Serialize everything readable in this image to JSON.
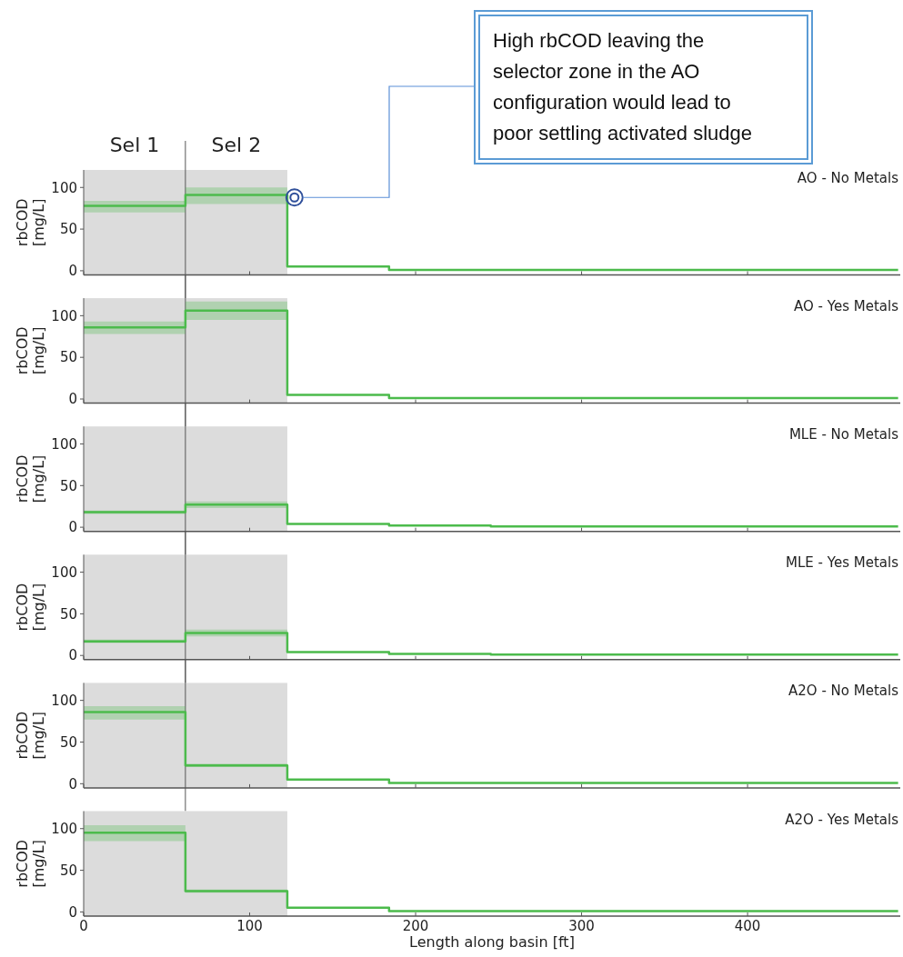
{
  "chart_data": [
    {
      "type": "step",
      "title": "AO - No Metals",
      "ylabel": "rbCOD [mg/L]",
      "xlim": [
        0,
        492
      ],
      "xticks": [
        0,
        100,
        200,
        300,
        400
      ],
      "ylim": [
        -5,
        121
      ],
      "yticks": [
        0,
        50,
        100
      ],
      "tick_labels": "y",
      "grid": false,
      "x": [
        0,
        61.3,
        122.7,
        184,
        245.3,
        306.7,
        368,
        429.3,
        490.7
      ],
      "series": [
        {
          "color": "#4cbb4c",
          "values": [
            78,
            91,
            5,
            1,
            1,
            1,
            1,
            1,
            1
          ],
          "lower": [
            70,
            80,
            5,
            null,
            null,
            null,
            null,
            null,
            null
          ],
          "upper": [
            84,
            100,
            5,
            null,
            null,
            null,
            null,
            null,
            null
          ]
        }
      ],
      "bands": [
        {
          "axis": "x",
          "from": 0,
          "to": 61.3,
          "label": "Sel 1",
          "color": "#dcdcdc"
        },
        {
          "axis": "x",
          "from": 61.3,
          "to": 122.7,
          "label": "Sel 2",
          "color": "#dcdcdc"
        }
      ],
      "ref_lines": [
        {
          "axis": "x",
          "value": 61.3,
          "color": "#555555"
        }
      ],
      "annotations": [
        {
          "text": "High rbCOD leaving the selector zone in the AO configuration would lead to poor settling activated sludge",
          "x": 127,
          "y": 88
        }
      ]
    },
    {
      "type": "step",
      "title": "AO - Yes Metals",
      "ylabel": "rbCOD [mg/L]",
      "xlim": [
        0,
        492
      ],
      "xticks": [
        0,
        100,
        200,
        300,
        400
      ],
      "ylim": [
        -5,
        121
      ],
      "yticks": [
        0,
        50,
        100
      ],
      "tick_labels": "y",
      "grid": false,
      "x": [
        0,
        61.3,
        122.7,
        184,
        245.3,
        306.7,
        368,
        429.3,
        490.7
      ],
      "series": [
        {
          "color": "#4cbb4c",
          "values": [
            86,
            106,
            5,
            1,
            1,
            1,
            1,
            1,
            1
          ],
          "lower": [
            78,
            95,
            5,
            null,
            null,
            null,
            null,
            null,
            null
          ],
          "upper": [
            93,
            117,
            5,
            null,
            null,
            null,
            null,
            null,
            null
          ]
        }
      ],
      "bands": [
        {
          "axis": "x",
          "from": 0,
          "to": 122.7,
          "color": "#dcdcdc"
        }
      ],
      "ref_lines": [
        {
          "axis": "x",
          "value": 61.3,
          "color": "#555555"
        }
      ]
    },
    {
      "type": "step",
      "title": "MLE - No Metals",
      "ylabel": "rbCOD [mg/L]",
      "xlim": [
        0,
        492
      ],
      "xticks": [
        0,
        100,
        200,
        300,
        400
      ],
      "ylim": [
        -5,
        121
      ],
      "yticks": [
        0,
        50,
        100
      ],
      "tick_labels": "y",
      "grid": false,
      "x": [
        0,
        61.3,
        122.7,
        184,
        245.3,
        306.7,
        368,
        429.3,
        490.7
      ],
      "series": [
        {
          "color": "#4cbb4c",
          "values": [
            18,
            27,
            4,
            2,
            1,
            1,
            1,
            1,
            1
          ],
          "lower": [
            16,
            23,
            4,
            null,
            null,
            null,
            null,
            null,
            null
          ],
          "upper": [
            20,
            31,
            4,
            null,
            null,
            null,
            null,
            null,
            null
          ]
        }
      ],
      "bands": [
        {
          "axis": "x",
          "from": 0,
          "to": 122.7,
          "color": "#dcdcdc"
        }
      ],
      "ref_lines": [
        {
          "axis": "x",
          "value": 61.3,
          "color": "#555555"
        }
      ]
    },
    {
      "type": "step",
      "title": "MLE - Yes Metals",
      "ylabel": "rbCOD [mg/L]",
      "xlim": [
        0,
        492
      ],
      "xticks": [
        0,
        100,
        200,
        300,
        400
      ],
      "ylim": [
        -5,
        121
      ],
      "yticks": [
        0,
        50,
        100
      ],
      "tick_labels": "y",
      "grid": false,
      "x": [
        0,
        61.3,
        122.7,
        184,
        245.3,
        306.7,
        368,
        429.3,
        490.7
      ],
      "series": [
        {
          "color": "#4cbb4c",
          "values": [
            17,
            27,
            4,
            2,
            1,
            1,
            1,
            1,
            1
          ],
          "lower": [
            15,
            23,
            4,
            null,
            null,
            null,
            null,
            null,
            null
          ],
          "upper": [
            19,
            31,
            4,
            null,
            null,
            null,
            null,
            null,
            null
          ]
        }
      ],
      "bands": [
        {
          "axis": "x",
          "from": 0,
          "to": 122.7,
          "color": "#dcdcdc"
        }
      ],
      "ref_lines": [
        {
          "axis": "x",
          "value": 61.3,
          "color": "#555555"
        }
      ]
    },
    {
      "type": "step",
      "title": "A2O - No Metals",
      "ylabel": "rbCOD [mg/L]",
      "xlim": [
        0,
        492
      ],
      "xticks": [
        0,
        100,
        200,
        300,
        400
      ],
      "ylim": [
        -5,
        121
      ],
      "yticks": [
        0,
        50,
        100
      ],
      "tick_labels": "y",
      "grid": false,
      "x": [
        0,
        61.3,
        122.7,
        184,
        245.3,
        306.7,
        368,
        429.3,
        490.7
      ],
      "series": [
        {
          "color": "#4cbb4c",
          "values": [
            86,
            22,
            5,
            1,
            1,
            1,
            1,
            1,
            1
          ],
          "lower": [
            77,
            20,
            5,
            null,
            null,
            null,
            null,
            null,
            null
          ],
          "upper": [
            93,
            24,
            5,
            null,
            null,
            null,
            null,
            null,
            null
          ]
        }
      ],
      "bands": [
        {
          "axis": "x",
          "from": 0,
          "to": 122.7,
          "color": "#dcdcdc"
        }
      ],
      "ref_lines": [
        {
          "axis": "x",
          "value": 61.3,
          "color": "#555555"
        }
      ]
    },
    {
      "type": "step",
      "title": "A2O - Yes Metals",
      "ylabel": "rbCOD [mg/L]",
      "xlabel": "Length along basin [ft]",
      "xlim": [
        0,
        492
      ],
      "xticks": [
        0,
        100,
        200,
        300,
        400
      ],
      "ylim": [
        -5,
        121
      ],
      "yticks": [
        0,
        50,
        100
      ],
      "grid": false,
      "x": [
        0,
        61.3,
        122.7,
        184,
        245.3,
        306.7,
        368,
        429.3,
        490.7
      ],
      "series": [
        {
          "color": "#4cbb4c",
          "values": [
            95,
            25,
            5,
            1,
            1,
            1,
            1,
            1,
            1
          ],
          "lower": [
            85,
            23,
            5,
            null,
            null,
            null,
            null,
            null,
            null
          ],
          "upper": [
            104,
            27,
            5,
            null,
            null,
            null,
            null,
            null,
            null
          ]
        }
      ],
      "bands": [
        {
          "axis": "x",
          "from": 0,
          "to": 122.7,
          "color": "#dcdcdc"
        }
      ]
    }
  ]
}
